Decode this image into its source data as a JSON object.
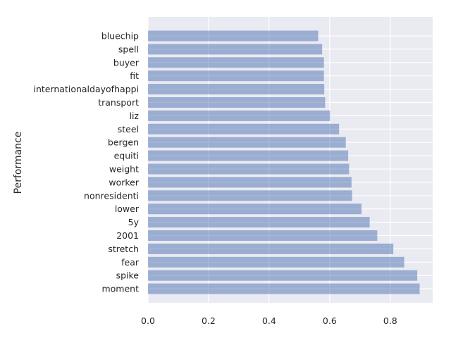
{
  "chart_data": {
    "type": "bar",
    "orientation": "horizontal",
    "title": "",
    "xlabel": "",
    "ylabel": "Performance",
    "categories": [
      "bluechip",
      "spell",
      "buyer",
      "fit",
      "internationaldayofhappi",
      "transport",
      "liz",
      "steel",
      "bergen",
      "equiti",
      "weight",
      "worker",
      "nonresidenti",
      "lower",
      "5y",
      "2001",
      "stretch",
      "fear",
      "spike",
      "moment"
    ],
    "values": [
      0.562,
      0.575,
      0.581,
      0.581,
      0.582,
      0.585,
      0.601,
      0.631,
      0.653,
      0.661,
      0.664,
      0.672,
      0.674,
      0.705,
      0.732,
      0.757,
      0.81,
      0.846,
      0.889,
      0.897
    ],
    "xlim": [
      0,
      0.94
    ],
    "xticks": [
      "0.0",
      "0.2",
      "0.4",
      "0.6",
      "0.8"
    ],
    "grid": true,
    "bar_color": "#4c72b0",
    "bar_alpha": 0.5,
    "background_color": "#eaeaf2"
  }
}
